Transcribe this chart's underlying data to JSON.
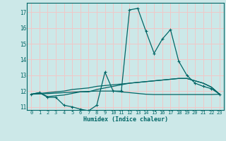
{
  "title": "",
  "xlabel": "Humidex (Indice chaleur)",
  "bg_color": "#cce8e8",
  "grid_color": "#f0c8c8",
  "line_color": "#006666",
  "xlim": [
    -0.5,
    23.5
  ],
  "ylim": [
    10.8,
    17.6
  ],
  "yticks": [
    11,
    12,
    13,
    14,
    15,
    16,
    17
  ],
  "xticks": [
    0,
    1,
    2,
    3,
    4,
    5,
    6,
    7,
    8,
    9,
    10,
    11,
    12,
    13,
    14,
    15,
    16,
    17,
    18,
    19,
    20,
    21,
    22,
    23
  ],
  "series": [
    [
      11.8,
      11.9,
      11.6,
      11.6,
      11.1,
      11.0,
      10.85,
      10.75,
      11.1,
      13.2,
      12.0,
      12.0,
      17.15,
      17.25,
      15.8,
      14.4,
      15.3,
      15.9,
      13.9,
      13.0,
      12.5,
      12.3,
      12.15,
      11.8
    ],
    [
      11.8,
      11.9,
      11.65,
      11.7,
      11.75,
      11.85,
      11.95,
      11.95,
      12.1,
      12.2,
      12.3,
      12.4,
      12.5,
      12.55,
      12.6,
      12.65,
      12.7,
      12.75,
      12.8,
      12.8,
      12.65,
      12.5,
      12.25,
      11.8
    ],
    [
      11.8,
      11.85,
      11.9,
      11.95,
      12.0,
      12.1,
      12.15,
      12.2,
      12.3,
      12.35,
      12.4,
      12.45,
      12.5,
      12.55,
      12.6,
      12.65,
      12.7,
      12.75,
      12.8,
      12.8,
      12.65,
      12.5,
      12.25,
      11.8
    ],
    [
      11.8,
      11.82,
      11.84,
      11.87,
      11.9,
      11.93,
      11.96,
      11.98,
      12.0,
      12.0,
      12.0,
      11.95,
      11.9,
      11.85,
      11.8,
      11.78,
      11.78,
      11.78,
      11.78,
      11.78,
      11.78,
      11.78,
      11.78,
      11.8
    ]
  ]
}
